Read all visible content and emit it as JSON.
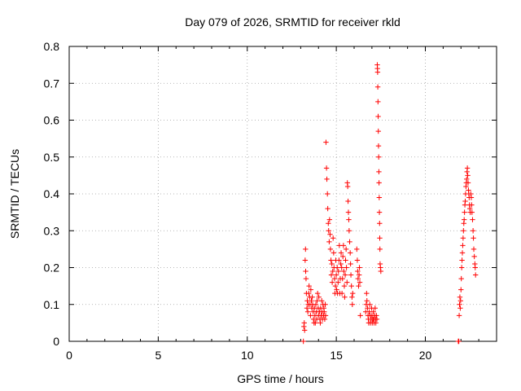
{
  "chart_data": {
    "type": "scatter",
    "title": "Day 079 of 2026, SRMTID for receiver rkld",
    "xlabel": "GPS time / hours",
    "ylabel": "SRMTID / TECUs",
    "xlim": [
      0,
      24
    ],
    "ylim": [
      0,
      0.8
    ],
    "xticks": [
      0,
      5,
      10,
      15,
      20
    ],
    "xtick_labels": [
      "0",
      "5",
      "10",
      "15",
      "20"
    ],
    "yticks": [
      0,
      0.1,
      0.2,
      0.3,
      0.4,
      0.5,
      0.6,
      0.7,
      0.8
    ],
    "ytick_labels": [
      "0",
      "0.1",
      "0.2",
      "0.3",
      "0.4",
      "0.5",
      "0.6",
      "0.7",
      "0.8"
    ],
    "grid": true,
    "marker": "plus",
    "color": "#ff0000",
    "series": [
      {
        "name": "SRMTID",
        "points": [
          [
            13.15,
            0.0
          ],
          [
            13.18,
            0.04
          ],
          [
            13.2,
            0.05
          ],
          [
            13.22,
            0.03
          ],
          [
            13.25,
            0.22
          ],
          [
            13.27,
            0.25
          ],
          [
            13.28,
            0.19
          ],
          [
            13.3,
            0.17
          ],
          [
            13.32,
            0.13
          ],
          [
            13.35,
            0.09
          ],
          [
            13.37,
            0.11
          ],
          [
            13.4,
            0.08
          ],
          [
            13.42,
            0.1
          ],
          [
            13.45,
            0.13
          ],
          [
            13.47,
            0.15
          ],
          [
            13.5,
            0.12
          ],
          [
            13.52,
            0.1
          ],
          [
            13.55,
            0.07
          ],
          [
            13.57,
            0.14
          ],
          [
            13.6,
            0.11
          ],
          [
            13.62,
            0.09
          ],
          [
            13.65,
            0.12
          ],
          [
            13.67,
            0.1
          ],
          [
            13.7,
            0.08
          ],
          [
            13.72,
            0.06
          ],
          [
            13.75,
            0.05
          ],
          [
            13.77,
            0.09
          ],
          [
            13.8,
            0.07
          ],
          [
            13.82,
            0.05
          ],
          [
            13.85,
            0.1
          ],
          [
            13.88,
            0.08
          ],
          [
            13.9,
            0.06
          ],
          [
            13.92,
            0.11
          ],
          [
            13.95,
            0.13
          ],
          [
            13.98,
            0.09
          ],
          [
            14.0,
            0.07
          ],
          [
            14.02,
            0.12
          ],
          [
            14.05,
            0.08
          ],
          [
            14.08,
            0.06
          ],
          [
            14.1,
            0.05
          ],
          [
            14.12,
            0.09
          ],
          [
            14.15,
            0.07
          ],
          [
            14.18,
            0.11
          ],
          [
            14.2,
            0.08
          ],
          [
            14.22,
            0.06
          ],
          [
            14.25,
            0.1
          ],
          [
            14.28,
            0.07
          ],
          [
            14.3,
            0.09
          ],
          [
            14.32,
            0.08
          ],
          [
            14.35,
            0.06
          ],
          [
            14.38,
            0.1
          ],
          [
            14.4,
            0.07
          ],
          [
            14.42,
            0.54
          ],
          [
            14.45,
            0.47
          ],
          [
            14.47,
            0.44
          ],
          [
            14.5,
            0.4
          ],
          [
            14.52,
            0.36
          ],
          [
            14.55,
            0.32
          ],
          [
            14.57,
            0.3
          ],
          [
            14.6,
            0.27
          ],
          [
            14.62,
            0.33
          ],
          [
            14.65,
            0.29
          ],
          [
            14.67,
            0.25
          ],
          [
            14.7,
            0.22
          ],
          [
            14.72,
            0.18
          ],
          [
            14.75,
            0.21
          ],
          [
            14.77,
            0.16
          ],
          [
            14.8,
            0.19
          ],
          [
            14.82,
            0.28
          ],
          [
            14.85,
            0.24
          ],
          [
            14.87,
            0.2
          ],
          [
            14.9,
            0.17
          ],
          [
            14.92,
            0.13
          ],
          [
            14.95,
            0.15
          ],
          [
            14.97,
            0.22
          ],
          [
            15.0,
            0.18
          ],
          [
            15.02,
            0.14
          ],
          [
            15.05,
            0.2
          ],
          [
            15.07,
            0.13
          ],
          [
            15.1,
            0.16
          ],
          [
            15.12,
            0.19
          ],
          [
            15.15,
            0.22
          ],
          [
            15.17,
            0.26
          ],
          [
            15.2,
            0.13
          ],
          [
            15.22,
            0.17
          ],
          [
            15.25,
            0.21
          ],
          [
            15.27,
            0.24
          ],
          [
            15.3,
            0.2
          ],
          [
            15.32,
            0.13
          ],
          [
            15.35,
            0.17
          ],
          [
            15.37,
            0.23
          ],
          [
            15.4,
            0.26
          ],
          [
            15.42,
            0.19
          ],
          [
            15.45,
            0.15
          ],
          [
            15.47,
            0.12
          ],
          [
            15.5,
            0.18
          ],
          [
            15.52,
            0.22
          ],
          [
            15.55,
            0.25
          ],
          [
            15.57,
            0.2
          ],
          [
            15.6,
            0.16
          ],
          [
            15.62,
            0.43
          ],
          [
            15.64,
            0.42
          ],
          [
            15.66,
            0.38
          ],
          [
            15.68,
            0.35
          ],
          [
            15.7,
            0.33
          ],
          [
            15.72,
            0.3
          ],
          [
            15.75,
            0.27
          ],
          [
            15.78,
            0.24
          ],
          [
            15.8,
            0.21
          ],
          [
            15.82,
            0.18
          ],
          [
            15.85,
            0.15
          ],
          [
            15.88,
            0.12
          ],
          [
            15.9,
            0.1
          ],
          [
            15.92,
            0.13
          ],
          [
            16.15,
            0.25
          ],
          [
            16.18,
            0.22
          ],
          [
            16.2,
            0.19
          ],
          [
            16.22,
            0.17
          ],
          [
            16.25,
            0.15
          ],
          [
            16.28,
            0.18
          ],
          [
            16.3,
            0.2
          ],
          [
            16.32,
            0.16
          ],
          [
            16.35,
            0.07
          ],
          [
            16.65,
            0.08
          ],
          [
            16.68,
            0.1
          ],
          [
            16.7,
            0.13
          ],
          [
            16.72,
            0.11
          ],
          [
            16.75,
            0.09
          ],
          [
            16.78,
            0.07
          ],
          [
            16.8,
            0.06
          ],
          [
            16.82,
            0.05
          ],
          [
            16.85,
            0.08
          ],
          [
            16.88,
            0.1
          ],
          [
            16.9,
            0.07
          ],
          [
            16.92,
            0.05
          ],
          [
            16.95,
            0.06
          ],
          [
            16.98,
            0.09
          ],
          [
            17.0,
            0.07
          ],
          [
            17.02,
            0.05
          ],
          [
            17.05,
            0.06
          ],
          [
            17.08,
            0.08
          ],
          [
            17.1,
            0.06
          ],
          [
            17.12,
            0.05
          ],
          [
            17.15,
            0.07
          ],
          [
            17.18,
            0.09
          ],
          [
            17.2,
            0.06
          ],
          [
            17.22,
            0.05
          ],
          [
            17.25,
            0.07
          ],
          [
            17.28,
            0.06
          ],
          [
            17.3,
            0.75
          ],
          [
            17.31,
            0.74
          ],
          [
            17.32,
            0.73
          ],
          [
            17.33,
            0.69
          ],
          [
            17.34,
            0.65
          ],
          [
            17.35,
            0.61
          ],
          [
            17.36,
            0.57
          ],
          [
            17.37,
            0.53
          ],
          [
            17.38,
            0.5
          ],
          [
            17.39,
            0.46
          ],
          [
            17.4,
            0.43
          ],
          [
            17.41,
            0.39
          ],
          [
            17.42,
            0.35
          ],
          [
            17.43,
            0.32
          ],
          [
            17.44,
            0.28
          ],
          [
            17.45,
            0.25
          ],
          [
            17.46,
            0.21
          ],
          [
            17.48,
            0.2
          ],
          [
            17.5,
            0.19
          ],
          [
            21.85,
            0.0
          ],
          [
            21.88,
            0.0
          ],
          [
            21.9,
            0.07
          ],
          [
            21.92,
            0.1
          ],
          [
            21.94,
            0.12
          ],
          [
            21.96,
            0.09
          ],
          [
            21.98,
            0.11
          ],
          [
            22.0,
            0.14
          ],
          [
            22.02,
            0.17
          ],
          [
            22.04,
            0.2
          ],
          [
            22.06,
            0.22
          ],
          [
            22.08,
            0.24
          ],
          [
            22.1,
            0.26
          ],
          [
            22.12,
            0.28
          ],
          [
            22.14,
            0.3
          ],
          [
            22.16,
            0.32
          ],
          [
            22.18,
            0.33
          ],
          [
            22.2,
            0.35
          ],
          [
            22.22,
            0.37
          ],
          [
            22.24,
            0.38
          ],
          [
            22.26,
            0.4
          ],
          [
            22.28,
            0.42
          ],
          [
            22.3,
            0.43
          ],
          [
            22.32,
            0.44
          ],
          [
            22.34,
            0.46
          ],
          [
            22.36,
            0.47
          ],
          [
            22.38,
            0.45
          ],
          [
            22.4,
            0.43
          ],
          [
            22.42,
            0.41
          ],
          [
            22.44,
            0.4
          ],
          [
            22.46,
            0.39
          ],
          [
            22.48,
            0.37
          ],
          [
            22.5,
            0.36
          ],
          [
            22.52,
            0.35
          ],
          [
            22.55,
            0.4
          ],
          [
            22.58,
            0.39
          ],
          [
            22.6,
            0.37
          ],
          [
            22.62,
            0.35
          ],
          [
            22.65,
            0.33
          ],
          [
            22.68,
            0.3
          ],
          [
            22.7,
            0.28
          ],
          [
            22.72,
            0.25
          ],
          [
            22.75,
            0.23
          ],
          [
            22.78,
            0.21
          ],
          [
            22.8,
            0.2
          ],
          [
            22.82,
            0.18
          ]
        ]
      }
    ]
  }
}
